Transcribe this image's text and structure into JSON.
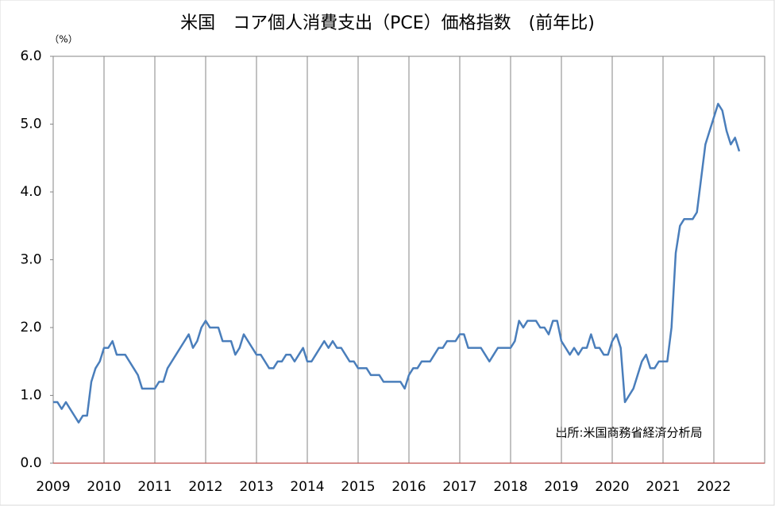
{
  "chart_data": {
    "type": "line",
    "title": "米国　コア個人消費支出（PCE）価格指数　(前年比)",
    "y_unit": "（%）",
    "annotation": "出所:米国商務省経済分析局",
    "categories": [
      "2009",
      null,
      null,
      null,
      null,
      null,
      null,
      null,
      null,
      null,
      null,
      null,
      "2010",
      null,
      null,
      null,
      null,
      null,
      null,
      null,
      null,
      null,
      null,
      null,
      "2011",
      null,
      null,
      null,
      null,
      null,
      null,
      null,
      null,
      null,
      null,
      null,
      "2012",
      null,
      null,
      null,
      null,
      null,
      null,
      null,
      null,
      null,
      null,
      null,
      "2013",
      null,
      null,
      null,
      null,
      null,
      null,
      null,
      null,
      null,
      null,
      null,
      "2014",
      null,
      null,
      null,
      null,
      null,
      null,
      null,
      null,
      null,
      null,
      null,
      "2015",
      null,
      null,
      null,
      null,
      null,
      null,
      null,
      null,
      null,
      null,
      null,
      "2016",
      null,
      null,
      null,
      null,
      null,
      null,
      null,
      null,
      null,
      null,
      null,
      "2017",
      null,
      null,
      null,
      null,
      null,
      null,
      null,
      null,
      null,
      null,
      null,
      "2018",
      null,
      null,
      null,
      null,
      null,
      null,
      null,
      null,
      null,
      null,
      null,
      "2019",
      null,
      null,
      null,
      null,
      null,
      null,
      null,
      null,
      null,
      null,
      null,
      "2020",
      null,
      null,
      null,
      null,
      null,
      null,
      null,
      null,
      null,
      null,
      null,
      "2021",
      null,
      null,
      null,
      null,
      null,
      null,
      null,
      null,
      null,
      null,
      null,
      "2022",
      null,
      null,
      null,
      null,
      null,
      null
    ],
    "series": [
      {
        "color": "#4a7ebb",
        "values": [
          0.9,
          0.9,
          0.8,
          0.9,
          0.8,
          0.7,
          0.6,
          0.7,
          0.7,
          1.2,
          1.4,
          1.5,
          1.7,
          1.7,
          1.8,
          1.6,
          1.6,
          1.6,
          1.5,
          1.4,
          1.3,
          1.1,
          1.1,
          1.1,
          1.1,
          1.2,
          1.2,
          1.4,
          1.5,
          1.6,
          1.7,
          1.8,
          1.9,
          1.7,
          1.8,
          2.0,
          2.1,
          2.0,
          2.0,
          2.0,
          1.8,
          1.8,
          1.8,
          1.6,
          1.7,
          1.9,
          1.8,
          1.7,
          1.6,
          1.6,
          1.5,
          1.4,
          1.4,
          1.5,
          1.5,
          1.6,
          1.6,
          1.5,
          1.6,
          1.7,
          1.5,
          1.5,
          1.6,
          1.7,
          1.8,
          1.7,
          1.8,
          1.7,
          1.7,
          1.6,
          1.5,
          1.5,
          1.4,
          1.4,
          1.4,
          1.3,
          1.3,
          1.3,
          1.2,
          1.2,
          1.2,
          1.2,
          1.2,
          1.1,
          1.3,
          1.4,
          1.4,
          1.5,
          1.5,
          1.5,
          1.6,
          1.7,
          1.7,
          1.8,
          1.8,
          1.8,
          1.9,
          1.9,
          1.7,
          1.7,
          1.7,
          1.7,
          1.6,
          1.5,
          1.6,
          1.7,
          1.7,
          1.7,
          1.7,
          1.8,
          2.1,
          2.0,
          2.1,
          2.1,
          2.1,
          2.0,
          2.0,
          1.9,
          2.1,
          2.1,
          1.8,
          1.7,
          1.6,
          1.7,
          1.6,
          1.7,
          1.7,
          1.9,
          1.7,
          1.7,
          1.6,
          1.6,
          1.8,
          1.9,
          1.7,
          0.9,
          1.0,
          1.1,
          1.3,
          1.5,
          1.6,
          1.4,
          1.4,
          1.5,
          1.5,
          1.5,
          2.0,
          3.1,
          3.5,
          3.6,
          3.6,
          3.6,
          3.7,
          4.2,
          4.7,
          4.9,
          5.1,
          5.3,
          5.2,
          4.9,
          4.7,
          4.8,
          4.6
        ]
      }
    ],
    "ylim": [
      0,
      6
    ],
    "yticks": [
      {
        "value": 0,
        "label": "0.0"
      },
      {
        "value": 1,
        "label": "1.0"
      },
      {
        "value": 2,
        "label": "2.0"
      },
      {
        "value": 3,
        "label": "3.0"
      },
      {
        "value": 4,
        "label": "4.0"
      },
      {
        "value": 5,
        "label": "5.0"
      },
      {
        "value": 6,
        "label": "6.0"
      }
    ],
    "zero_line_color": "#c0504d",
    "grid": true
  }
}
